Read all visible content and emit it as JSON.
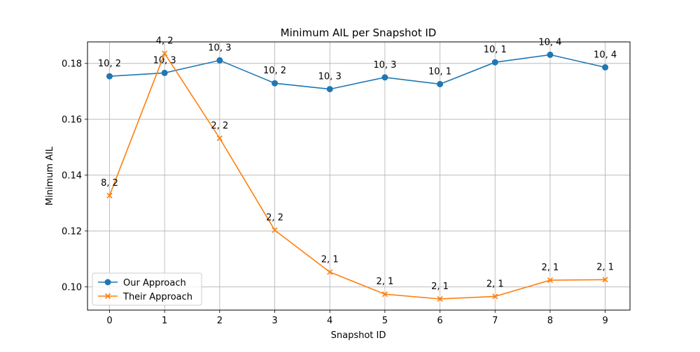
{
  "chart_data": {
    "type": "line",
    "title": "Minimum AIL per Snapshot ID",
    "xlabel": "Snapshot ID",
    "ylabel": "Minimum AIL",
    "x": [
      0,
      1,
      2,
      3,
      4,
      5,
      6,
      7,
      8,
      9
    ],
    "xlim": [
      -0.4,
      9.45
    ],
    "ylim": [
      0.0917,
      0.1877
    ],
    "xticks": [
      "0",
      "1",
      "2",
      "3",
      "4",
      "5",
      "6",
      "7",
      "8",
      "9"
    ],
    "yticks": [
      "0.10",
      "0.12",
      "0.14",
      "0.16",
      "0.18"
    ],
    "ytick_values": [
      0.1,
      0.12,
      0.14,
      0.16,
      0.18
    ],
    "grid": true,
    "legend_position": "lower-left",
    "series": [
      {
        "name": "Our Approach",
        "color": "#1f77b4",
        "marker": "circle",
        "values": [
          0.1754,
          0.1766,
          0.1811,
          0.1729,
          0.1708,
          0.175,
          0.1726,
          0.1804,
          0.1831,
          0.1786
        ],
        "labels": [
          "10, 2",
          "10, 3",
          "10, 3",
          "10, 2",
          "10, 3",
          "10, 3",
          "10, 1",
          "10, 1",
          "10, 4",
          "10, 4"
        ]
      },
      {
        "name": "Their Approach",
        "color": "#ff7f0e",
        "marker": "x",
        "values": [
          0.1327,
          0.1836,
          0.1532,
          0.1203,
          0.1053,
          0.0974,
          0.0957,
          0.0966,
          0.1024,
          0.1026
        ],
        "labels": [
          "8, 2",
          "4, 2",
          "2, 2",
          "2, 2",
          "2, 1",
          "2, 1",
          "2, 1",
          "2, 1",
          "2, 1",
          "2, 1"
        ]
      }
    ]
  }
}
